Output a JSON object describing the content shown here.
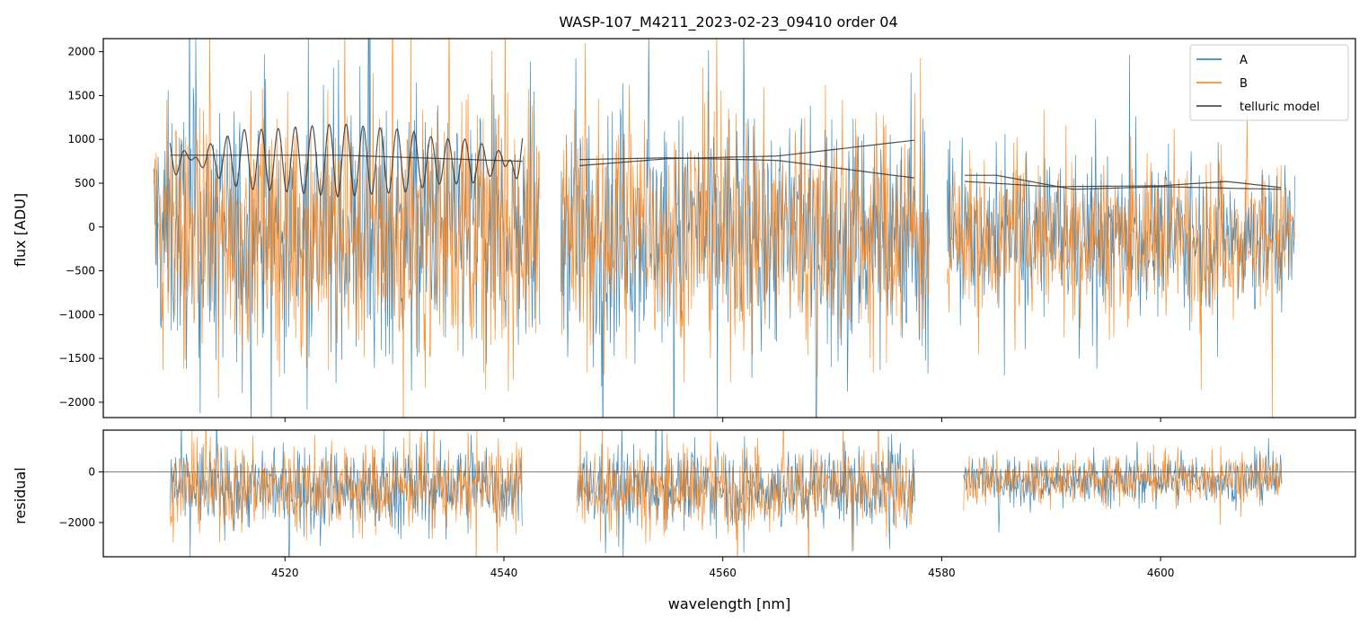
{
  "chart_data": [
    {
      "type": "line",
      "panel": "top",
      "title": "WASP-107_M4211_2023-02-23_09410  order 04",
      "xlabel": "",
      "ylabel": "flux [ADU]",
      "xlim": [
        4503.4,
        4617.8
      ],
      "ylim": [
        -2175,
        2150
      ],
      "yticks": [
        -2000,
        -1500,
        -1000,
        -500,
        0,
        500,
        1000,
        1500,
        2000
      ],
      "ytick_labels": [
        "−2000",
        "−1500",
        "−1000",
        "−500",
        "0",
        "500",
        "1000",
        "1500",
        "2000"
      ],
      "xticks": [
        4520,
        4540,
        4560,
        4580,
        4600
      ],
      "grid": false,
      "legend_loc": "top-right",
      "legend": [
        "A",
        "B",
        "telluric model"
      ],
      "colors": {
        "A": "#1f77b4",
        "B": "#ff7f0e",
        "telluric model": "#333333"
      },
      "segments": [
        {
          "x_start": 4508.0,
          "x_end": 4543.3,
          "center": -50,
          "spread": 1300
        },
        {
          "x_start": 4545.2,
          "x_end": 4578.9,
          "center": -30,
          "spread": 1200
        },
        {
          "x_start": 4580.5,
          "x_end": 4612.3,
          "center": -100,
          "spread": 750
        }
      ],
      "series": [
        {
          "name": "telluric model (smooth)",
          "x": [
            4509.5,
            4525,
            4541.7
          ],
          "y": [
            820,
            820,
            750
          ]
        },
        {
          "name": "telluric model (oscillating)",
          "x": [
            4509.5,
            4513,
            4516,
            4519,
            4522,
            4525,
            4528,
            4531,
            4534,
            4537,
            4540,
            4541.7
          ],
          "y": [
            530,
            940,
            1110,
            1120,
            1150,
            1180,
            1140,
            1110,
            1010,
            1000,
            850,
            400
          ]
        },
        {
          "name": "telluric model seg2 a",
          "x": [
            4546.9,
            4555,
            4565,
            4577.5
          ],
          "y": [
            770,
            790,
            760,
            560
          ]
        },
        {
          "name": "telluric model seg2 b",
          "x": [
            4546.9,
            4555,
            4565,
            4577.5
          ],
          "y": [
            700,
            780,
            810,
            990
          ]
        },
        {
          "name": "telluric model seg3 a",
          "x": [
            4582.1,
            4590,
            4600,
            4606,
            4611
          ],
          "y": [
            520,
            460,
            470,
            520,
            450
          ]
        },
        {
          "name": "telluric model seg3 b",
          "x": [
            4582.1,
            4585,
            4592,
            4600,
            4611
          ],
          "y": [
            590,
            590,
            430,
            460,
            430
          ]
        }
      ]
    },
    {
      "type": "line",
      "panel": "bottom",
      "title": "",
      "xlabel": "wavelength [nm]",
      "ylabel": "residual",
      "xlim": [
        4503.4,
        4617.8
      ],
      "ylim": [
        -3350,
        1650
      ],
      "yticks": [
        -2000,
        0
      ],
      "ytick_labels": [
        "−2000",
        "0"
      ],
      "xticks": [
        4520,
        4540,
        4560,
        4580,
        4600
      ],
      "xtick_labels": [
        "4520",
        "4540",
        "4560",
        "4580",
        "4600"
      ],
      "grid": false,
      "hline": 0,
      "segments": [
        {
          "x_start": 4509.5,
          "x_end": 4541.7,
          "center": -600,
          "spread": 1500
        },
        {
          "x_start": 4546.7,
          "x_end": 4577.6,
          "center": -600,
          "spread": 1400
        },
        {
          "x_start": 4582.0,
          "x_end": 4611.1,
          "center": -300,
          "spread": 850
        }
      ]
    }
  ]
}
